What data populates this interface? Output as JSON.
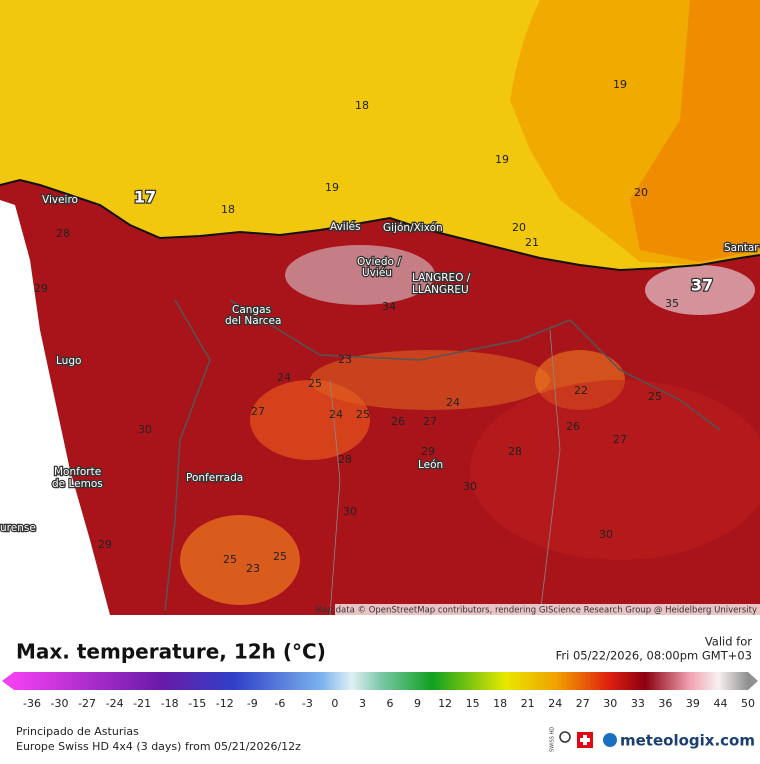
{
  "map": {
    "cities": [
      "Viveiro",
      "Avilés",
      "Gijón/Xixón",
      "Oviedo /",
      "Uviéu",
      "LANGREO /",
      "LLANGREU",
      "Cangas",
      "del Narcea",
      "Lugo",
      "Monforte",
      "de Lemos",
      "Ponferrada",
      "León",
      "urense",
      "Santar"
    ],
    "contour_labels": [
      17,
      18,
      19,
      19,
      19,
      18,
      20,
      20,
      21,
      37,
      35,
      34,
      28,
      29,
      30,
      24,
      25,
      23,
      24,
      25,
      26,
      27,
      24,
      22,
      25,
      26,
      27,
      28,
      29,
      28,
      30,
      30,
      30,
      25,
      23,
      25,
      29,
      27
    ],
    "attribution": "Map data © OpenStreetMap contributors, rendering GIScience Research Group @ Heidelberg University"
  },
  "header": {
    "title": "Max. temperature, 12h (°C)",
    "valid_label": "Valid for",
    "valid_time": "Fri 05/22/2026, 08:00pm GMT+03"
  },
  "legend": {
    "ticks": [
      -36,
      -30,
      -27,
      -24,
      -21,
      -18,
      -15,
      -12,
      -9,
      -6,
      -3,
      0,
      3,
      6,
      9,
      12,
      15,
      18,
      21,
      24,
      27,
      30,
      33,
      36,
      39,
      44,
      50
    ]
  },
  "footer": {
    "region": "Principado de Asturias",
    "model": "Europe Swiss HD 4x4 (3 days) from 05/21/2026/12z",
    "badge": "SWISS HD",
    "brand": "meteologix.com"
  }
}
